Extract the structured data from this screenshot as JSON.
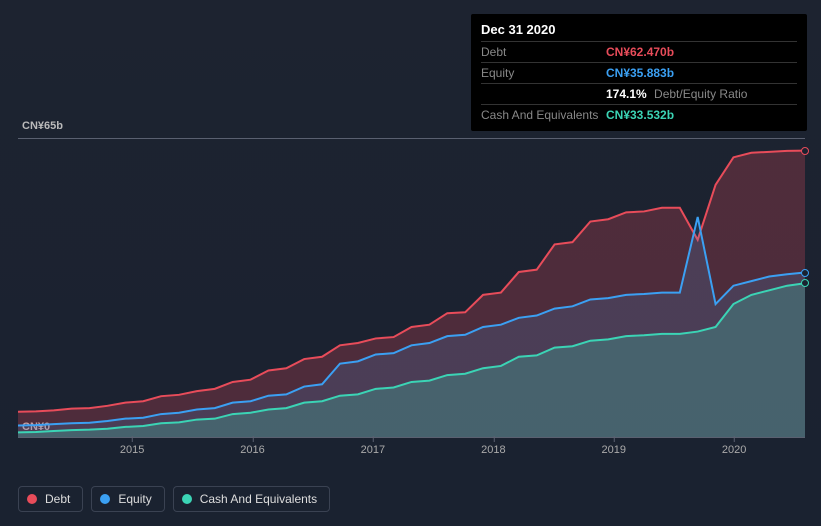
{
  "chart": {
    "type": "area",
    "background_color": "#1a2230",
    "grid_border_color": "#5a6070",
    "y_axis": {
      "top_label": "CN¥65b",
      "bottom_label": "CN¥0",
      "min": 0,
      "max": 65,
      "label_color": "#bbb",
      "label_fontsize": 11
    },
    "x_axis": {
      "ticks": [
        "2015",
        "2016",
        "2017",
        "2018",
        "2019",
        "2020"
      ],
      "tick_positions_pct": [
        14.5,
        29.8,
        45.1,
        60.4,
        75.7,
        91.0
      ],
      "label_color": "#aaa",
      "label_fontsize": 11
    },
    "series": [
      {
        "name": "Debt",
        "color": "#e84c5a",
        "fill_opacity": 0.25,
        "values": [
          5.5,
          5.6,
          5.8,
          6.2,
          6.3,
          6.8,
          7.5,
          7.8,
          8.9,
          9.2,
          10,
          10.5,
          12,
          12.5,
          14.5,
          15,
          17,
          17.5,
          20,
          20.5,
          21.5,
          21.8,
          24,
          24.5,
          27,
          27.2,
          31,
          31.5,
          36,
          36.5,
          42,
          42.5,
          47,
          47.5,
          49,
          49.2,
          50,
          50,
          43,
          55,
          61,
          62,
          62.2,
          62.4,
          62.47
        ]
      },
      {
        "name": "Equity",
        "color": "#3ba0f3",
        "fill_opacity": 0.15,
        "values": [
          2.5,
          2.6,
          2.8,
          3,
          3.1,
          3.5,
          4,
          4.2,
          5,
          5.3,
          6,
          6.3,
          7.5,
          7.8,
          9,
          9.3,
          11,
          11.5,
          16,
          16.5,
          18,
          18.3,
          20,
          20.5,
          22,
          22.3,
          24,
          24.5,
          26,
          26.5,
          28,
          28.5,
          30,
          30.3,
          31,
          31.2,
          31.5,
          31.5,
          48,
          29,
          33,
          34,
          35,
          35.5,
          35.88
        ]
      },
      {
        "name": "Cash And Equivalents",
        "color": "#3bd4b5",
        "fill_opacity": 0.25,
        "values": [
          1,
          1.1,
          1.3,
          1.5,
          1.6,
          1.8,
          2.2,
          2.4,
          3,
          3.2,
          3.8,
          4,
          5,
          5.3,
          6,
          6.3,
          7.5,
          7.8,
          9,
          9.3,
          10.5,
          10.8,
          12,
          12.3,
          13.5,
          13.8,
          15,
          15.5,
          17.5,
          17.8,
          19.5,
          19.8,
          21,
          21.3,
          22,
          22.2,
          22.5,
          22.5,
          23,
          24,
          29,
          31,
          32,
          33,
          33.53
        ]
      }
    ],
    "end_markers": [
      {
        "color": "#e84c5a",
        "value": 62.47
      },
      {
        "color": "#3ba0f3",
        "value": 35.88
      },
      {
        "color": "#3bd4b5",
        "value": 33.53
      }
    ]
  },
  "tooltip": {
    "date": "Dec 31 2020",
    "rows": [
      {
        "label": "Debt",
        "value": "CN¥62.470b",
        "color": "#e84c5a"
      },
      {
        "label": "Equity",
        "value": "CN¥35.883b",
        "color": "#3ba0f3"
      }
    ],
    "ratio": {
      "value": "174.1%",
      "label": "Debt/Equity Ratio"
    },
    "cash_row": {
      "label": "Cash And Equivalents",
      "value": "CN¥33.532b",
      "color": "#3bd4b5"
    }
  },
  "legend": {
    "items": [
      {
        "label": "Debt",
        "color": "#e84c5a"
      },
      {
        "label": "Equity",
        "color": "#3ba0f3"
      },
      {
        "label": "Cash And Equivalents",
        "color": "#3bd4b5"
      }
    ],
    "border_color": "#3a4252"
  }
}
